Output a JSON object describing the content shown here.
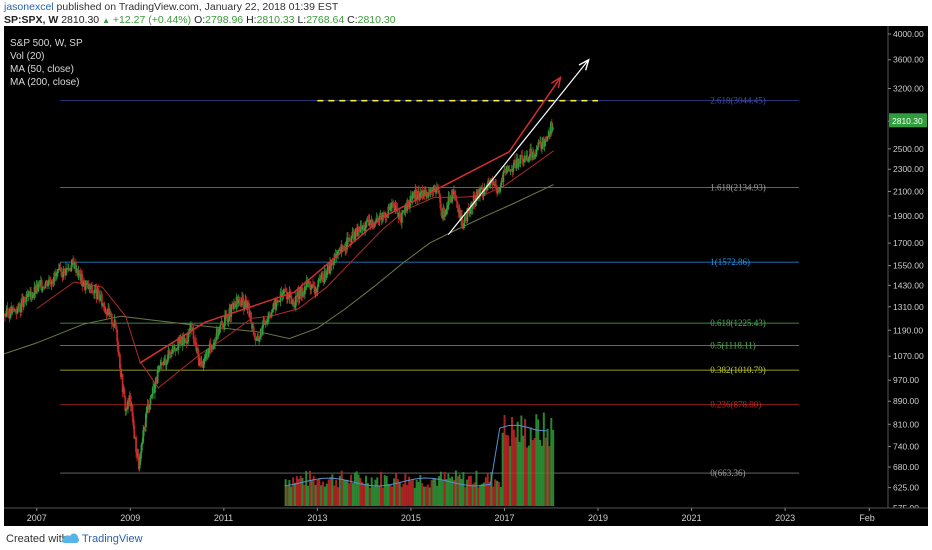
{
  "header": {
    "author": "jasonexcel",
    "published_text": "published on TradingView.com, January 22, 2018 01:39 EST",
    "symbol": "SP:SPX, W",
    "last": "2810.30",
    "change_arrow": "▲",
    "change": "+12.27 (+0.44%)",
    "o_label": "O:",
    "o_value": "2798.96",
    "h_label": "H:",
    "h_value": "2810.33",
    "l_label": "L:",
    "l_value": "2768.64",
    "c_label": "C:",
    "c_value": "2810.30"
  },
  "legend": {
    "title": "S&P 500, W, SP",
    "vol": "Vol (20)",
    "ma50": "MA (50, close)",
    "ma200": "MA (200, close)"
  },
  "footer": {
    "created_with": "Created with",
    "brand": "TradingView"
  },
  "colors": {
    "background": "#000000",
    "up": "#2f9e3a",
    "down": "#c62828",
    "ma50": "#b02a2a",
    "ma200": "#6c7a4a",
    "trendline": "#d32f2f",
    "channel": "#ffffff",
    "target_line": "#f5e642"
  },
  "chart_data": {
    "type": "line",
    "scale": "log",
    "ylim": [
      575,
      4000
    ],
    "y_ticks": [
      "4000.00",
      "3600.00",
      "3200.00",
      "2800.00",
      "2500.00",
      "2300.00",
      "2100.00",
      "1900.00",
      "1700.00",
      "1550.00",
      "1430.00",
      "1310.00",
      "1190.00",
      "1070.00",
      "970.00",
      "890.00",
      "810.00",
      "740.00",
      "680.00",
      "625.00",
      "575.00"
    ],
    "x_ticks": [
      "2007",
      "2009",
      "2011",
      "2013",
      "2015",
      "2017",
      "2019",
      "2021",
      "2023",
      "Feb"
    ],
    "x_tick_years": [
      2007,
      2009,
      2011,
      2013,
      2015,
      2017,
      2019,
      2021,
      2023,
      2024.8
    ],
    "xlim": [
      2006.3,
      2025.2
    ],
    "last_price_label": "2810.30",
    "last_price": 2810.3,
    "fib_levels": [
      {
        "label": "2.618(3044.45)",
        "value": 3044.45,
        "color": "#3f51b5"
      },
      {
        "label": "1.618(2134.93)",
        "value": 2134.93,
        "color": "#9e9e9e"
      },
      {
        "label": "1(1572.86)",
        "value": 1572.86,
        "color": "#2196f3"
      },
      {
        "label": "0.618(1225.43)",
        "value": 1225.43,
        "color": "#4caf50"
      },
      {
        "label": "0.5(1118.11)",
        "value": 1118.11,
        "color": "#4caf50"
      },
      {
        "label": "0.382(1010.79)",
        "value": 1010.79,
        "color": "#c0ca33"
      },
      {
        "label": "0.236(878.00)",
        "value": 878.0,
        "color": "#c62828"
      },
      {
        "label": "0(663.36)",
        "value": 663.36,
        "color": "#9e9e9e"
      }
    ],
    "price_path": [
      [
        2006.3,
        1270
      ],
      [
        2006.6,
        1300
      ],
      [
        2007.0,
        1410
      ],
      [
        2007.3,
        1470
      ],
      [
        2007.6,
        1520
      ],
      [
        2007.8,
        1565
      ],
      [
        2008.0,
        1440
      ],
      [
        2008.3,
        1380
      ],
      [
        2008.5,
        1290
      ],
      [
        2008.7,
        1200
      ],
      [
        2008.8,
        1000
      ],
      [
        2008.9,
        860
      ],
      [
        2009.0,
        900
      ],
      [
        2009.1,
        760
      ],
      [
        2009.19,
        680
      ],
      [
        2009.35,
        860
      ],
      [
        2009.6,
        1000
      ],
      [
        2009.9,
        1110
      ],
      [
        2010.2,
        1150
      ],
      [
        2010.3,
        1200
      ],
      [
        2010.5,
        1030
      ],
      [
        2010.7,
        1100
      ],
      [
        2010.9,
        1200
      ],
      [
        2011.3,
        1340
      ],
      [
        2011.5,
        1320
      ],
      [
        2011.7,
        1130
      ],
      [
        2011.9,
        1250
      ],
      [
        2012.3,
        1400
      ],
      [
        2012.5,
        1330
      ],
      [
        2012.8,
        1450
      ],
      [
        2012.95,
        1400
      ],
      [
        2013.3,
        1560
      ],
      [
        2013.6,
        1690
      ],
      [
        2013.9,
        1800
      ],
      [
        2014.3,
        1880
      ],
      [
        2014.6,
        1980
      ],
      [
        2014.8,
        1880
      ],
      [
        2015.0,
        2050
      ],
      [
        2015.4,
        2110
      ],
      [
        2015.6,
        2090
      ],
      [
        2015.65,
        1900
      ],
      [
        2015.9,
        2080
      ],
      [
        2016.1,
        1830
      ],
      [
        2016.4,
        2070
      ],
      [
        2016.7,
        2170
      ],
      [
        2016.9,
        2130
      ],
      [
        2017.0,
        2270
      ],
      [
        2017.3,
        2370
      ],
      [
        2017.6,
        2470
      ],
      [
        2017.85,
        2580
      ],
      [
        2018.05,
        2810
      ]
    ],
    "ma50_path": [
      [
        2007.0,
        1300
      ],
      [
        2007.8,
        1450
      ],
      [
        2008.4,
        1420
      ],
      [
        2008.9,
        1260
      ],
      [
        2009.2,
        1050
      ],
      [
        2009.6,
        940
      ],
      [
        2010.0,
        1000
      ],
      [
        2010.5,
        1080
      ],
      [
        2011.0,
        1150
      ],
      [
        2011.6,
        1250
      ],
      [
        2012.0,
        1260
      ],
      [
        2012.6,
        1300
      ],
      [
        2013.2,
        1420
      ],
      [
        2013.8,
        1600
      ],
      [
        2014.4,
        1800
      ],
      [
        2014.9,
        1950
      ],
      [
        2015.5,
        2050
      ],
      [
        2016.0,
        2050
      ],
      [
        2016.5,
        2060
      ],
      [
        2017.0,
        2150
      ],
      [
        2017.5,
        2300
      ],
      [
        2018.05,
        2480
      ]
    ],
    "ma200_path": [
      [
        2006.3,
        1080
      ],
      [
        2007.0,
        1130
      ],
      [
        2008.0,
        1220
      ],
      [
        2008.8,
        1260
      ],
      [
        2009.5,
        1240
      ],
      [
        2010.2,
        1220
      ],
      [
        2011.0,
        1200
      ],
      [
        2011.8,
        1180
      ],
      [
        2012.4,
        1150
      ],
      [
        2013.0,
        1200
      ],
      [
        2013.6,
        1300
      ],
      [
        2014.2,
        1420
      ],
      [
        2014.8,
        1560
      ],
      [
        2015.4,
        1700
      ],
      [
        2016.0,
        1800
      ],
      [
        2016.6,
        1900
      ],
      [
        2017.2,
        2000
      ],
      [
        2018.05,
        2160
      ]
    ],
    "red_trendline": [
      [
        2009.2,
        1040
      ],
      [
        2018.2,
        3350
      ]
    ],
    "red_arrow": [
      [
        2009.2,
        1040
      ],
      [
        2010.6,
        1230
      ],
      [
        2012.5,
        1390
      ],
      [
        2014.4,
        1890
      ],
      [
        2015.7,
        2150
      ],
      [
        2017.1,
        2470
      ],
      [
        2018.2,
        3350
      ]
    ],
    "white_channel_arrow": [
      [
        2015.8,
        1760
      ],
      [
        2018.8,
        3600
      ]
    ],
    "volume_bars_note": "Vol (20)"
  }
}
